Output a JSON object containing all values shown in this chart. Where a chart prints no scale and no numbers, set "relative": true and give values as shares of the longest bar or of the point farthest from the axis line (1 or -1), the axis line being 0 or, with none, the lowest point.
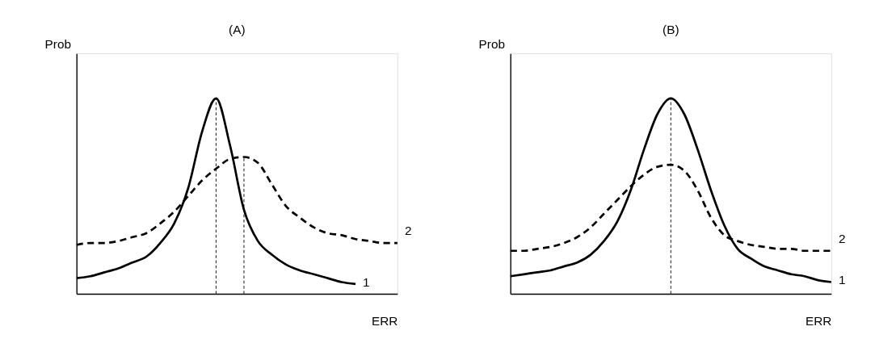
{
  "chart_data": [
    {
      "type": "line",
      "title": "(A)",
      "xlabel": "ERR",
      "ylabel": "Prob",
      "relative": true,
      "grid": false,
      "tick_labels": false,
      "marker": "none",
      "categories": [
        null,
        null,
        null,
        null,
        null,
        null,
        null,
        null,
        null,
        null,
        null,
        null,
        null,
        null,
        null,
        null,
        null,
        null,
        null,
        null,
        null,
        null,
        null,
        null
      ],
      "series": [
        {
          "name": "1",
          "color": "#000000",
          "line_style": "solid",
          "values": [
            0.08,
            0.09,
            0.11,
            0.13,
            0.16,
            0.19,
            0.26,
            0.36,
            0.54,
            0.83,
            1.0,
            0.76,
            0.43,
            0.27,
            0.2,
            0.15,
            0.12,
            0.1,
            0.08,
            0.06,
            0.05,
            null,
            null,
            null
          ]
        },
        {
          "name": "2",
          "color": "#000000",
          "line_style": "dashed",
          "values": [
            0.25,
            0.26,
            0.26,
            0.27,
            0.29,
            0.31,
            0.36,
            0.42,
            0.5,
            0.58,
            0.64,
            0.69,
            0.7,
            0.67,
            0.56,
            0.45,
            0.39,
            0.34,
            0.31,
            0.3,
            0.28,
            0.27,
            0.26,
            0.26
          ]
        }
      ]
    },
    {
      "type": "line",
      "title": "(B)",
      "xlabel": "ERR",
      "ylabel": "Prob",
      "relative": true,
      "grid": false,
      "tick_labels": false,
      "marker": "none",
      "categories": [
        null,
        null,
        null,
        null,
        null,
        null,
        null,
        null,
        null,
        null,
        null,
        null,
        null,
        null,
        null,
        null,
        null,
        null,
        null,
        null,
        null,
        null,
        null,
        null,
        null
      ],
      "series": [
        {
          "name": "1",
          "color": "#000000",
          "line_style": "solid",
          "values": [
            0.09,
            0.1,
            0.11,
            0.12,
            0.14,
            0.16,
            0.2,
            0.27,
            0.37,
            0.53,
            0.74,
            0.92,
            1.0,
            0.92,
            0.74,
            0.53,
            0.35,
            0.23,
            0.18,
            0.14,
            0.12,
            0.1,
            0.09,
            0.07,
            0.06
          ]
        },
        {
          "name": "2",
          "color": "#000000",
          "line_style": "dashed",
          "values": [
            0.22,
            0.22,
            0.23,
            0.24,
            0.26,
            0.29,
            0.34,
            0.41,
            0.48,
            0.55,
            0.61,
            0.65,
            0.66,
            0.63,
            0.53,
            0.39,
            0.3,
            0.27,
            0.25,
            0.24,
            0.23,
            0.23,
            0.22,
            0.22,
            0.22
          ]
        }
      ]
    }
  ]
}
